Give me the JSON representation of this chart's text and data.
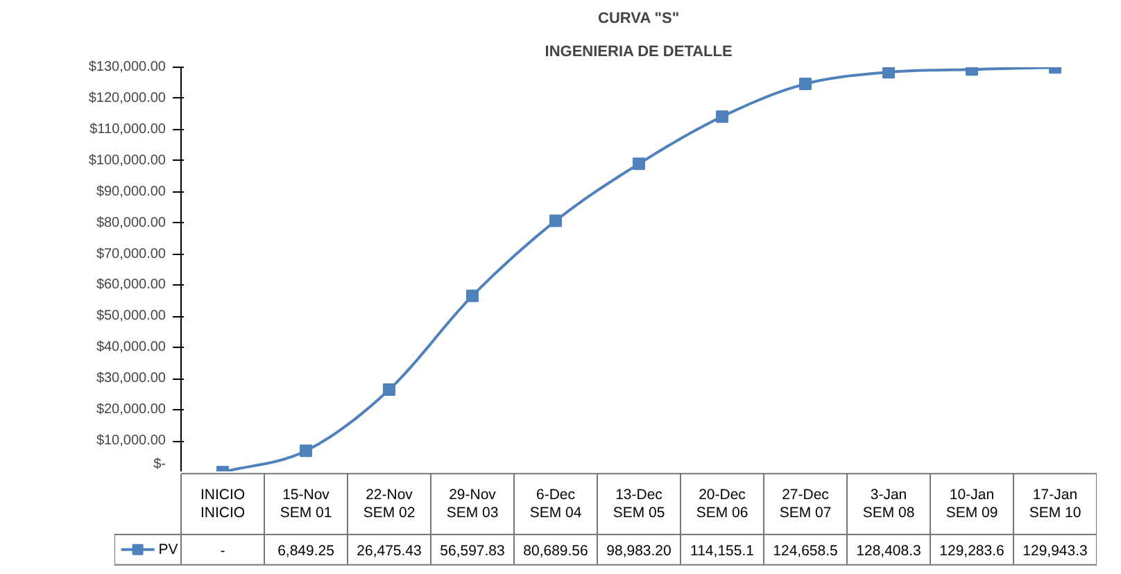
{
  "chart_data": {
    "type": "line",
    "title": "CURVA \"S\"",
    "subtitle": "INGENIERIA DE DETALLE",
    "categories": [
      "INICIO\nINICIO",
      "15-Nov\nSEM 01",
      "22-Nov\nSEM 02",
      "29-Nov\nSEM 03",
      "6-Dec\nSEM 04",
      "13-Dec\nSEM 05",
      "20-Dec\nSEM 06",
      "27-Dec\nSEM 07",
      "3-Jan\nSEM 08",
      "10-Jan\nSEM 09",
      "17-Jan\nSEM 10"
    ],
    "series": [
      {
        "name": "PV",
        "color": "#4f81bd",
        "values": [
          0,
          6849.25,
          26475.43,
          56597.83,
          80689.56,
          98983.2,
          114155.1,
          124658.5,
          128408.3,
          129283.6,
          129943.3
        ],
        "value_labels": [
          "-",
          "6,849.25",
          "26,475.43",
          "56,597.83",
          "80,689.56",
          "98,983.20",
          "114,155.1",
          "124,658.5",
          "128,408.3",
          "129,283.6",
          "129,943.3"
        ]
      }
    ],
    "ylim": [
      0,
      130000
    ],
    "yticks": [
      {
        "value": 0,
        "label": "$-"
      },
      {
        "value": 10000,
        "label": "$10,000.00"
      },
      {
        "value": 20000,
        "label": "$20,000.00"
      },
      {
        "value": 30000,
        "label": "$30,000.00"
      },
      {
        "value": 40000,
        "label": "$40,000.00"
      },
      {
        "value": 50000,
        "label": "$50,000.00"
      },
      {
        "value": 60000,
        "label": "$60,000.00"
      },
      {
        "value": 70000,
        "label": "$70,000.00"
      },
      {
        "value": 80000,
        "label": "$80,000.00"
      },
      {
        "value": 90000,
        "label": "$90,000.00"
      },
      {
        "value": 100000,
        "label": "$100,000.00"
      },
      {
        "value": 110000,
        "label": "$110,000.00"
      },
      {
        "value": 120000,
        "label": "$120,000.00"
      },
      {
        "value": 130000,
        "label": "$130,000.00"
      }
    ],
    "grid": false,
    "legend": "bottom",
    "marker": "square",
    "line_style": "solid"
  }
}
